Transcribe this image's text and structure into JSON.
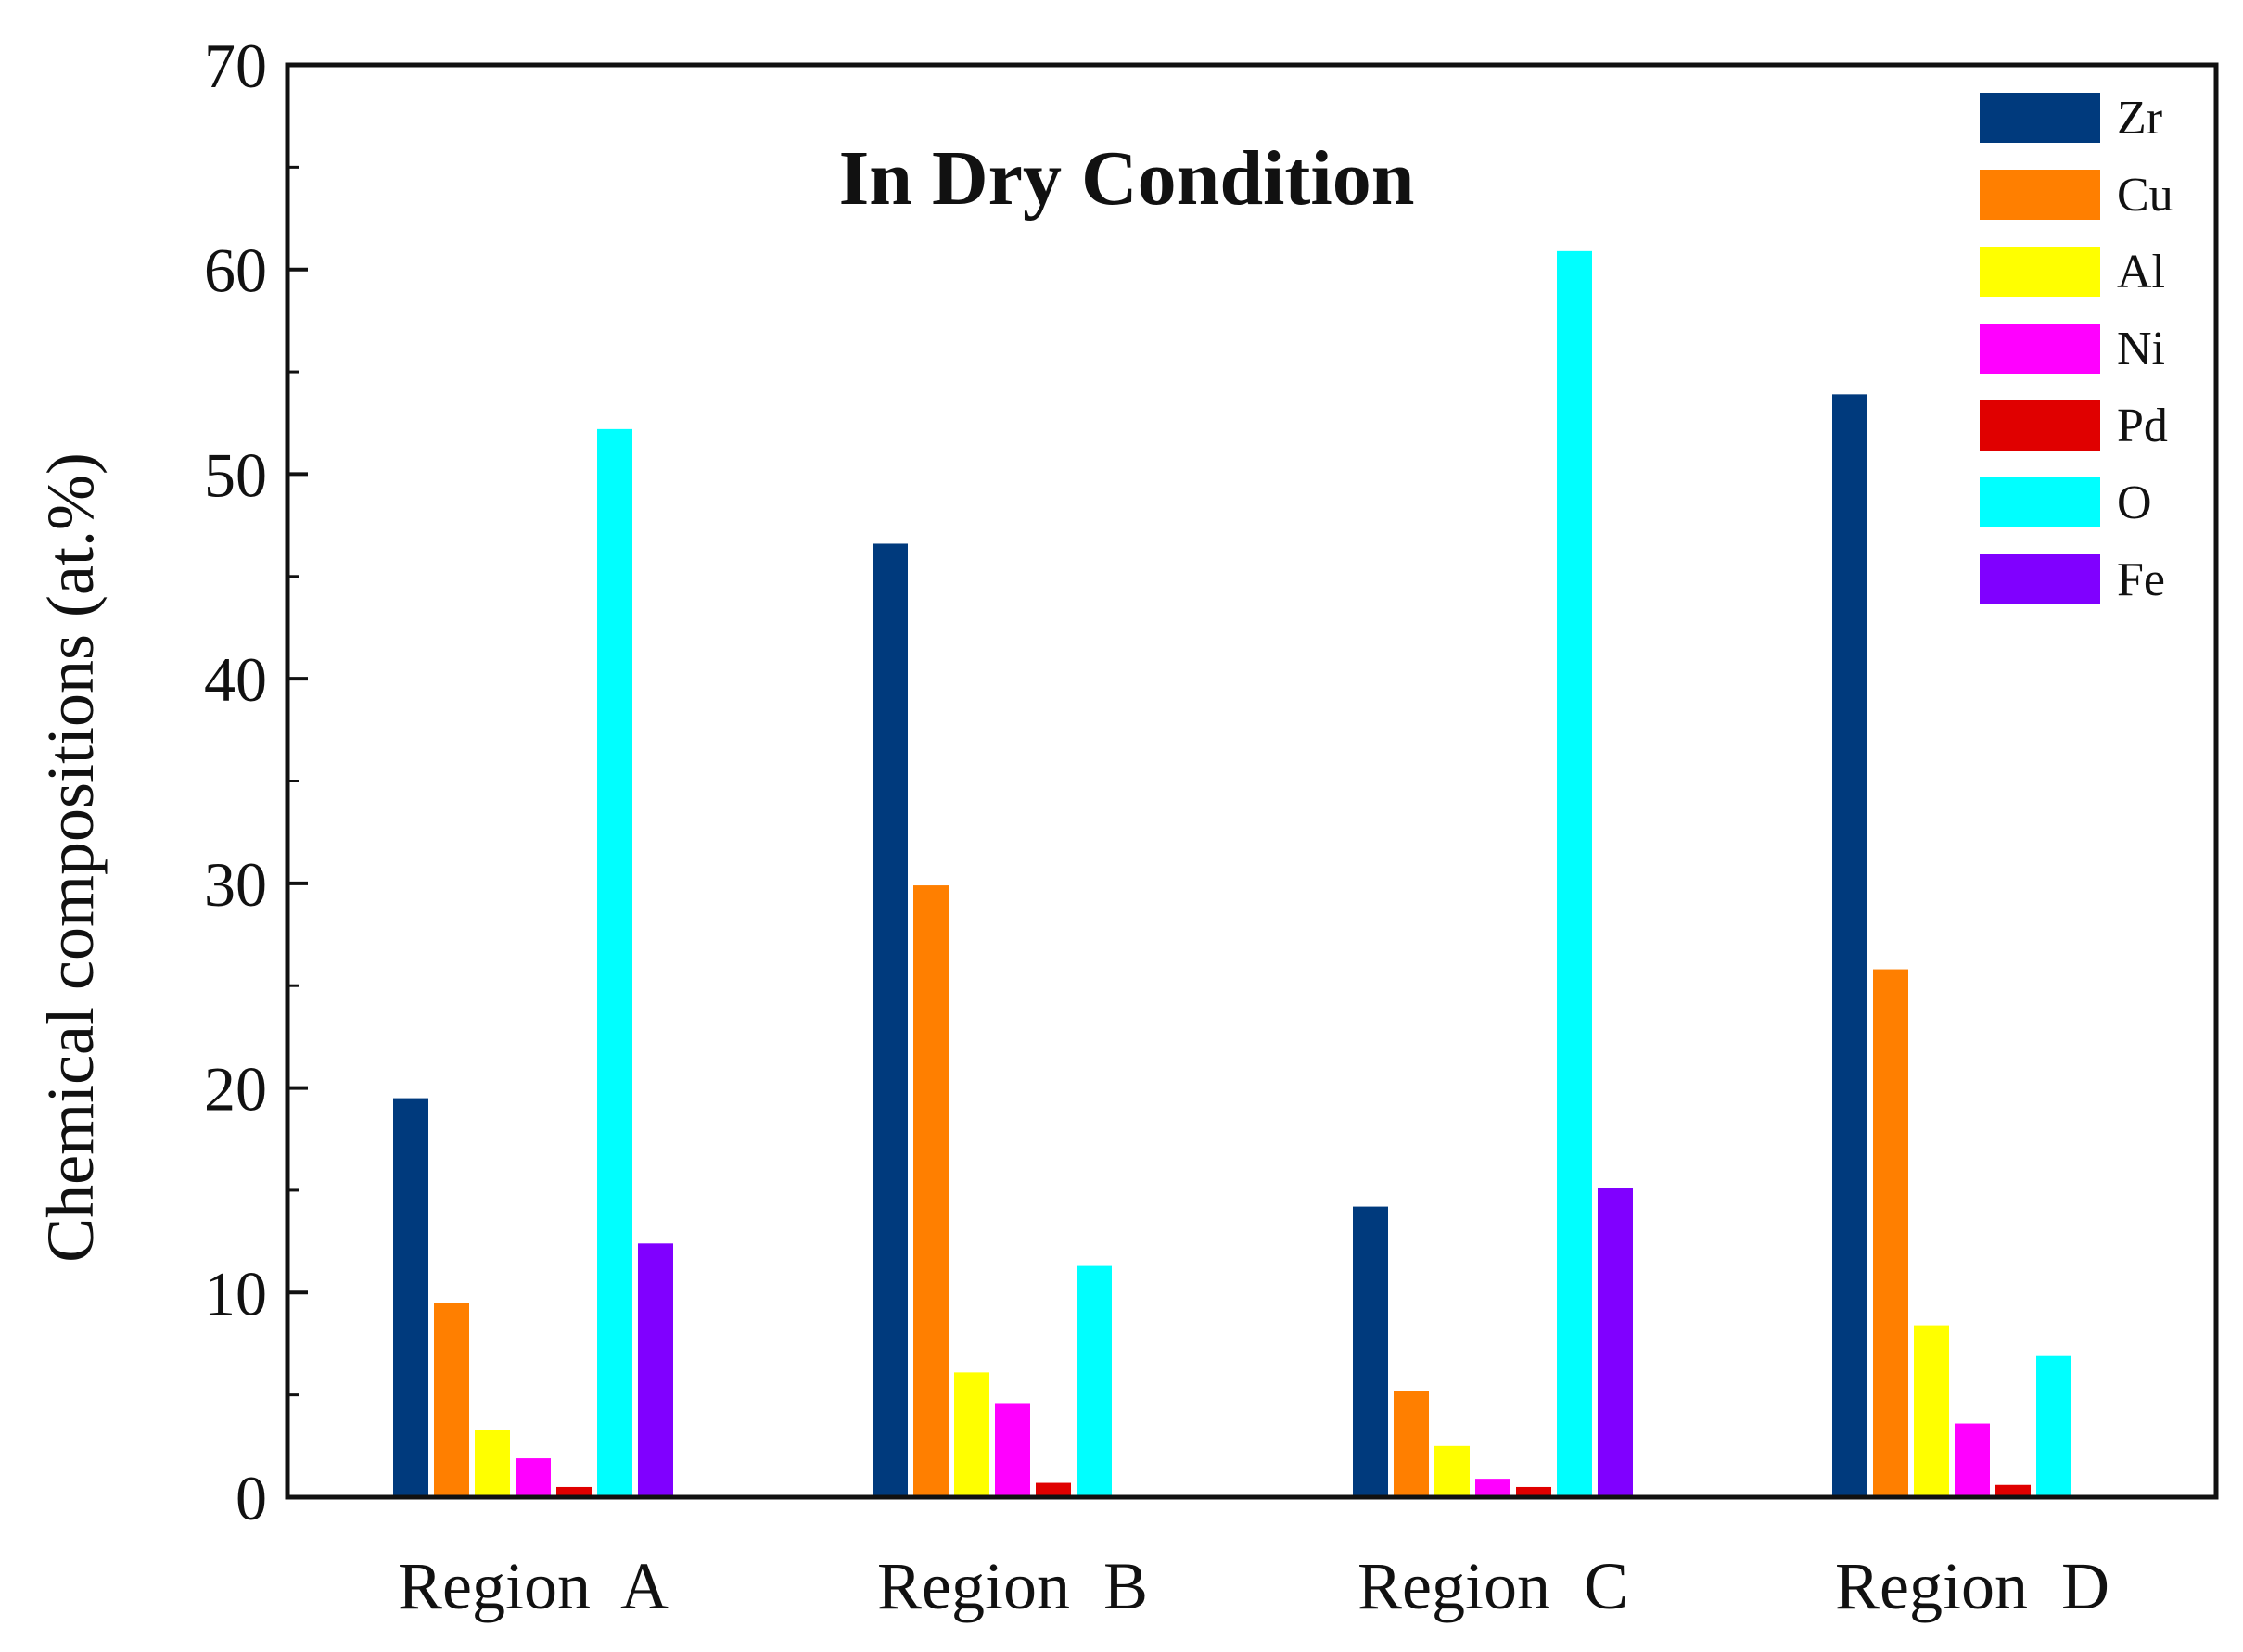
{
  "chart_data": {
    "type": "bar",
    "title": "In Dry Condition",
    "xlabel": "",
    "ylabel": "Chemical compositions (at.%)",
    "ylim": [
      0,
      70
    ],
    "yticks": [
      0,
      10,
      20,
      30,
      40,
      50,
      60,
      70
    ],
    "grid": false,
    "legend_position": "top-right",
    "categories": [
      "Region  A",
      "Region  B",
      "Region  C",
      "Region  D"
    ],
    "series": [
      {
        "name": "Zr",
        "color": "#003a7d",
        "values": [
          19.5,
          46.6,
          14.2,
          53.9
        ]
      },
      {
        "name": "Cu",
        "color": "#ff7f00",
        "values": [
          9.5,
          29.9,
          5.2,
          25.8
        ]
      },
      {
        "name": "Al",
        "color": "#ffff00",
        "values": [
          3.3,
          6.1,
          2.5,
          8.4
        ]
      },
      {
        "name": "Ni",
        "color": "#ff00ff",
        "values": [
          1.9,
          4.6,
          0.9,
          3.6
        ]
      },
      {
        "name": "Pd",
        "color": "#e00000",
        "values": [
          0.5,
          0.7,
          0.5,
          0.6
        ]
      },
      {
        "name": "O",
        "color": "#00ffff",
        "values": [
          52.2,
          11.3,
          60.9,
          6.9
        ]
      },
      {
        "name": "Fe",
        "color": "#8000ff",
        "values": [
          12.4,
          0,
          15.1,
          0
        ]
      }
    ]
  }
}
